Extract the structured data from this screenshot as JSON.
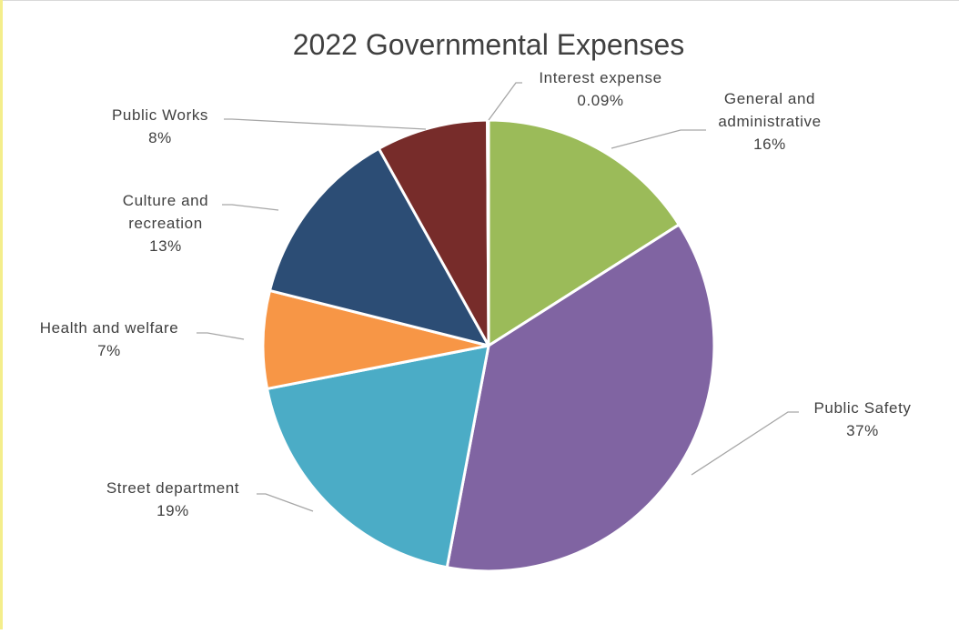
{
  "chart_data": {
    "type": "pie",
    "title": "2022 Governmental Expenses",
    "slices": [
      {
        "label_lines": [
          "General and",
          "administrative"
        ],
        "percent_label": "16%",
        "value": 16,
        "color": "#9bbb59"
      },
      {
        "label_lines": [
          "Public Safety"
        ],
        "percent_label": "37%",
        "value": 37,
        "color": "#8064a2"
      },
      {
        "label_lines": [
          "Street department"
        ],
        "percent_label": "19%",
        "value": 19,
        "color": "#4bacc6"
      },
      {
        "label_lines": [
          "Health and welfare"
        ],
        "percent_label": "7%",
        "value": 7,
        "color": "#f79646"
      },
      {
        "label_lines": [
          "Culture and",
          "recreation"
        ],
        "percent_label": "13%",
        "value": 13,
        "color": "#2c4d75"
      },
      {
        "label_lines": [
          "Public Works"
        ],
        "percent_label": "8%",
        "value": 8,
        "color": "#772c2a"
      },
      {
        "label_lines": [
          "Interest expense"
        ],
        "percent_label": "0.09%",
        "value": 0.09,
        "color": "#2f5597"
      }
    ],
    "start_angle_deg": 0,
    "direction": "clockwise",
    "legend": "none",
    "data_labels": "outside-with-leader-lines"
  }
}
